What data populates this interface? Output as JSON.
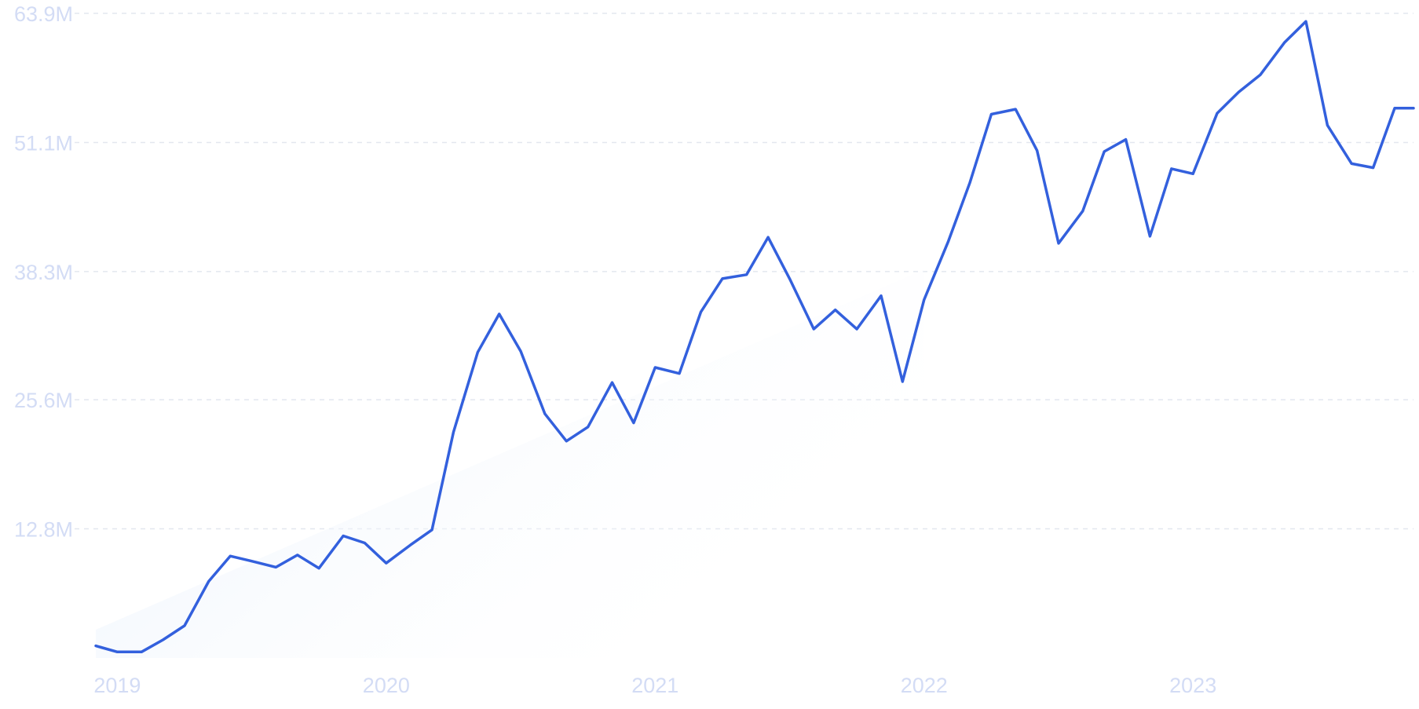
{
  "chart_data": {
    "type": "line",
    "title": "",
    "xlabel": "",
    "ylabel": "",
    "ylim": [
      0,
      63.9
    ],
    "xlim": [
      2019.0,
      2023.9
    ],
    "grid": true,
    "y_ticks": [
      {
        "value": 12.8,
        "label": "12.8M"
      },
      {
        "value": 25.6,
        "label": "25.6M"
      },
      {
        "value": 38.3,
        "label": "38.3M"
      },
      {
        "value": 51.1,
        "label": "51.1M"
      },
      {
        "value": 63.9,
        "label": "63.9M"
      }
    ],
    "x_ticks": [
      {
        "value": 2019.08,
        "label": "2019"
      },
      {
        "value": 2020.08,
        "label": "2020"
      },
      {
        "value": 2021.08,
        "label": "2021"
      },
      {
        "value": 2022.08,
        "label": "2022"
      },
      {
        "value": 2023.08,
        "label": "2023"
      }
    ],
    "trend": {
      "x": [
        2019.0,
        2022.08
      ],
      "y": [
        2.8,
        38.5
      ]
    },
    "series": [
      {
        "color": "#3360dd",
        "x": [
          2019.0,
          2019.08,
          2019.17,
          2019.25,
          2019.33,
          2019.42,
          2019.5,
          2019.58,
          2019.67,
          2019.75,
          2019.83,
          2019.92,
          2020.0,
          2020.08,
          2020.17,
          2020.25,
          2020.33,
          2020.42,
          2020.5,
          2020.58,
          2020.67,
          2020.75,
          2020.83,
          2020.92,
          2021.0,
          2021.08,
          2021.17,
          2021.25,
          2021.33,
          2021.42,
          2021.5,
          2021.58,
          2021.67,
          2021.75,
          2021.83,
          2021.92,
          2022.0,
          2022.08,
          2022.17,
          2022.25,
          2022.33,
          2022.42,
          2022.5,
          2022.58,
          2022.67,
          2022.75,
          2022.83,
          2022.92,
          2023.0,
          2023.08,
          2023.17,
          2023.25,
          2023.33,
          2023.42,
          2023.5,
          2023.58,
          2023.67,
          2023.75,
          2023.83,
          2023.9
        ],
        "values": [
          1.2,
          0.6,
          0.6,
          1.8,
          3.2,
          7.6,
          10.1,
          9.6,
          9.0,
          10.2,
          8.9,
          12.1,
          11.4,
          9.4,
          11.2,
          12.7,
          22.4,
          30.3,
          34.1,
          30.4,
          24.2,
          21.5,
          22.9,
          27.3,
          23.3,
          28.8,
          28.2,
          34.3,
          37.6,
          38.0,
          41.7,
          37.6,
          32.6,
          34.5,
          32.6,
          35.9,
          27.4,
          35.5,
          41.3,
          47.1,
          53.9,
          54.4,
          50.3,
          41.1,
          44.3,
          50.2,
          51.4,
          41.8,
          48.5,
          48.0,
          54.0,
          56.1,
          57.8,
          61.0,
          63.1,
          52.8,
          49.0,
          48.6,
          54.5,
          54.5
        ]
      }
    ]
  }
}
